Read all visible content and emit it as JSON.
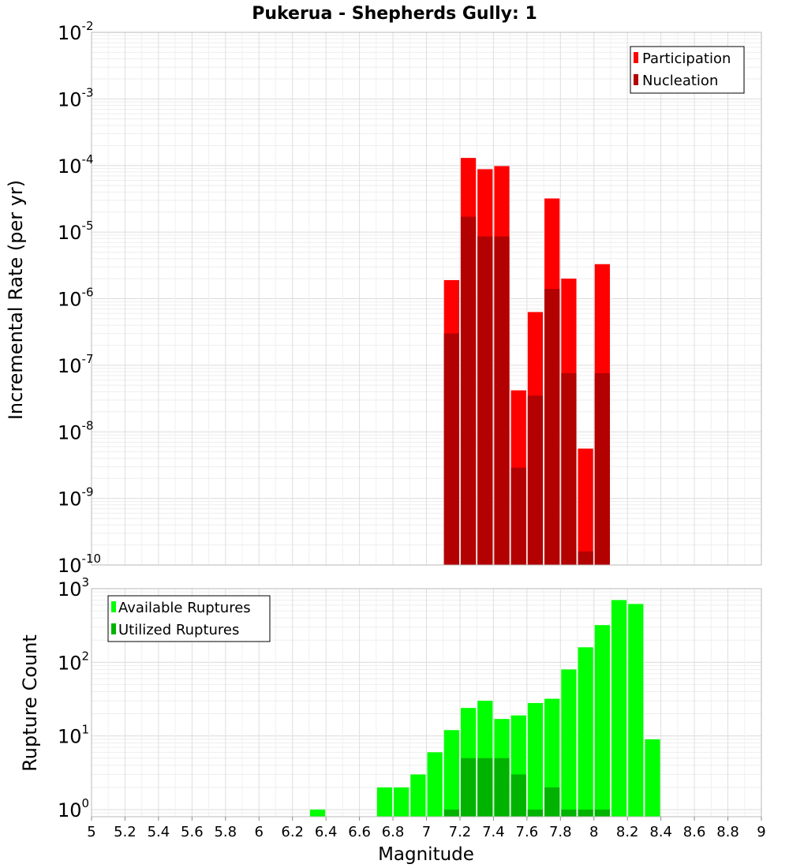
{
  "chart_data": [
    {
      "type": "bar",
      "title": "Pukerua - Shepherds Gully: 1",
      "xlabel": "Magnitude",
      "ylabel": "Incremental Rate (per yr)",
      "yscale": "log",
      "xlim": [
        5,
        9
      ],
      "ylim": [
        1e-10,
        0.01
      ],
      "ytick_labels": [
        {
          "base": "10",
          "exp": "-10"
        },
        {
          "base": "10",
          "exp": "-9"
        },
        {
          "base": "10",
          "exp": "-8"
        },
        {
          "base": "10",
          "exp": "-7"
        },
        {
          "base": "10",
          "exp": "-6"
        },
        {
          "base": "10",
          "exp": "-5"
        },
        {
          "base": "10",
          "exp": "-4"
        },
        {
          "base": "10",
          "exp": "-3"
        },
        {
          "base": "10",
          "exp": "-2"
        }
      ],
      "grid": true,
      "legend_position": "top-right",
      "colors": {
        "participation": "#ff0000",
        "nucleation": "#b30000"
      },
      "x": [
        7.15,
        7.25,
        7.35,
        7.45,
        7.55,
        7.65,
        7.75,
        7.85,
        7.95,
        8.05
      ],
      "series": [
        {
          "name": "Participation",
          "values": [
            1.9e-06,
            0.00013,
            8.8e-05,
            9.8e-05,
            4.2e-08,
            6.3e-07,
            3.2e-05,
            2e-06,
            5.6e-09,
            3.3e-06
          ]
        },
        {
          "name": "Nucleation",
          "values": [
            3e-07,
            1.7e-05,
            8.6e-06,
            8.6e-06,
            2.9e-09,
            3.5e-08,
            1.4e-06,
            7.6e-08,
            1.6e-10,
            7.6e-08
          ]
        }
      ]
    },
    {
      "type": "bar",
      "title": "",
      "xlabel": "Magnitude",
      "ylabel": "Rupture Count",
      "yscale": "log",
      "xlim": [
        5,
        9
      ],
      "ylim": [
        0.8,
        1000
      ],
      "ytick_labels": [
        {
          "base": "10",
          "exp": "0"
        },
        {
          "base": "10",
          "exp": "1"
        },
        {
          "base": "10",
          "exp": "2"
        },
        {
          "base": "10",
          "exp": "3"
        }
      ],
      "xtick_labels": [
        "5",
        "5.2",
        "5.4",
        "5.6",
        "5.8",
        "6",
        "6.2",
        "6.4",
        "6.6",
        "6.8",
        "7",
        "7.2",
        "7.4",
        "7.6",
        "7.8",
        "8",
        "8.2",
        "8.4",
        "8.6",
        "8.8",
        "9"
      ],
      "grid": true,
      "legend_position": "top-left",
      "colors": {
        "available": "#00ff00",
        "utilized": "#00b300"
      },
      "x": [
        6.35,
        6.75,
        6.85,
        6.95,
        7.05,
        7.15,
        7.25,
        7.35,
        7.45,
        7.55,
        7.65,
        7.75,
        7.85,
        7.95,
        8.05,
        8.15,
        8.25,
        8.35
      ],
      "series": [
        {
          "name": "Available Ruptures",
          "values": [
            1,
            2,
            2,
            3,
            6,
            12,
            24,
            30,
            17,
            19,
            28,
            32,
            80,
            160,
            320,
            700,
            620,
            9
          ]
        },
        {
          "name": "Utilized Ruptures",
          "values": [
            0,
            0,
            0,
            0,
            0,
            1,
            5,
            5,
            5,
            3,
            1,
            2,
            1,
            1,
            1,
            0,
            0,
            0
          ]
        }
      ]
    }
  ]
}
